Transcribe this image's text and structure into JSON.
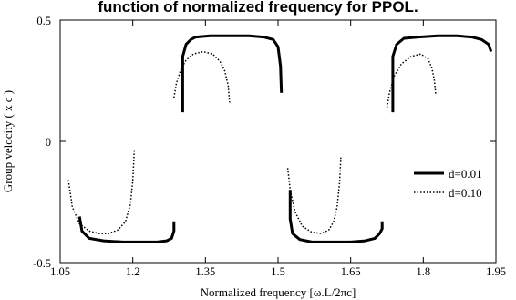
{
  "chart_data": {
    "type": "line",
    "title": "function of normalized frequency for PPOL.",
    "xlabel": "Normalized frequency [ω.L/2πc]",
    "ylabel": "Group velocity ( x c )",
    "xlim": [
      1.05,
      1.95
    ],
    "ylim": [
      -0.5,
      0.5
    ],
    "x_ticks": [
      "1.05",
      "1.2",
      "1.35",
      "1.5",
      "1.65",
      "1.8",
      "1.95"
    ],
    "y_ticks": [
      "0.5",
      "0",
      "-0.5"
    ],
    "grid": false,
    "legend_position": "right",
    "series": [
      {
        "name": "d=0.01",
        "style": "solid",
        "color": "#000000",
        "segments": [
          {
            "x": [
              1.09,
              1.095,
              1.11,
              1.14,
              1.18,
              1.22,
              1.25,
              1.27,
              1.28,
              1.285,
              1.285
            ],
            "y": [
              -0.31,
              -0.37,
              -0.4,
              -0.41,
              -0.415,
              -0.415,
              -0.415,
              -0.41,
              -0.4,
              -0.37,
              -0.33
            ]
          },
          {
            "x": [
              1.303,
              1.303,
              1.31,
              1.32,
              1.33,
              1.36,
              1.4,
              1.44,
              1.47,
              1.49,
              1.5,
              1.505,
              1.507
            ],
            "y": [
              0.12,
              0.35,
              0.4,
              0.42,
              0.43,
              0.435,
              0.435,
              0.435,
              0.43,
              0.42,
              0.39,
              0.31,
              0.2
            ]
          },
          {
            "x": [
              1.525,
              1.525,
              1.53,
              1.545,
              1.57,
              1.61,
              1.65,
              1.68,
              1.7,
              1.71,
              1.715,
              1.715
            ],
            "y": [
              -0.2,
              -0.32,
              -0.38,
              -0.405,
              -0.415,
              -0.415,
              -0.415,
              -0.41,
              -0.4,
              -0.38,
              -0.36,
              -0.33
            ]
          },
          {
            "x": [
              1.737,
              1.737,
              1.745,
              1.76,
              1.79,
              1.83,
              1.87,
              1.9,
              1.92,
              1.935,
              1.94
            ],
            "y": [
              0.12,
              0.35,
              0.4,
              0.425,
              0.43,
              0.435,
              0.435,
              0.43,
              0.42,
              0.4,
              0.37
            ]
          }
        ]
      },
      {
        "name": "d=0.10",
        "style": "dotted",
        "color": "#000000",
        "segments": [
          {
            "x": [
              1.067,
              1.075,
              1.09,
              1.11,
              1.13,
              1.15,
              1.17,
              1.185,
              1.195,
              1.2,
              1.203
            ],
            "y": [
              -0.16,
              -0.27,
              -0.34,
              -0.37,
              -0.38,
              -0.38,
              -0.365,
              -0.33,
              -0.26,
              -0.16,
              -0.04
            ]
          },
          {
            "x": [
              1.285,
              1.29,
              1.3,
              1.31,
              1.325,
              1.345,
              1.365,
              1.38,
              1.39,
              1.397,
              1.4
            ],
            "y": [
              0.18,
              0.24,
              0.3,
              0.335,
              0.36,
              0.37,
              0.36,
              0.33,
              0.29,
              0.23,
              0.16
            ]
          },
          {
            "x": [
              1.52,
              1.525,
              1.535,
              1.55,
              1.57,
              1.59,
              1.605,
              1.615,
              1.622,
              1.627,
              1.63
            ],
            "y": [
              -0.11,
              -0.2,
              -0.29,
              -0.35,
              -0.375,
              -0.38,
              -0.365,
              -0.33,
              -0.27,
              -0.17,
              -0.06
            ]
          },
          {
            "x": [
              1.725,
              1.73,
              1.74,
              1.755,
              1.775,
              1.795,
              1.81,
              1.818,
              1.823,
              1.826
            ],
            "y": [
              0.14,
              0.2,
              0.27,
              0.32,
              0.35,
              0.36,
              0.34,
              0.3,
              0.25,
              0.19
            ]
          }
        ]
      }
    ]
  }
}
